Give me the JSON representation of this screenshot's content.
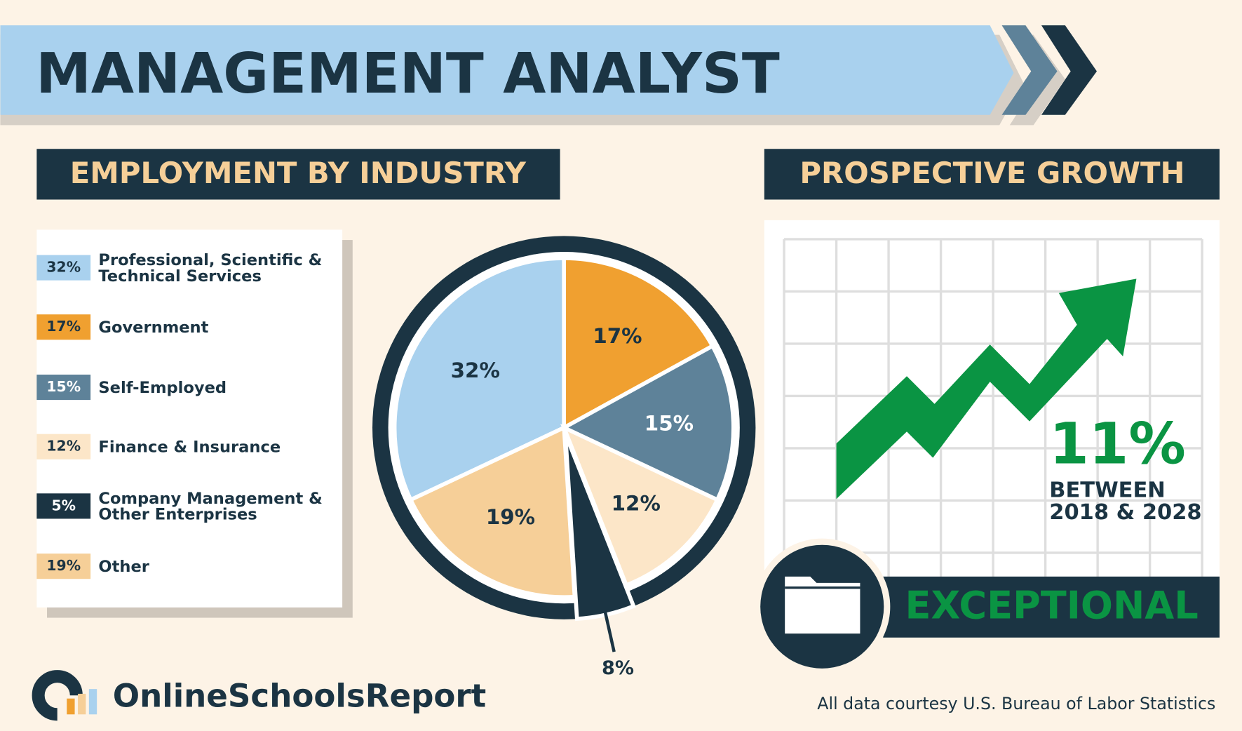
{
  "header": {
    "title": "MANAGEMENT ANALYST"
  },
  "chart_data": {
    "type": "pie",
    "title": "EMPLOYMENT BY INDUSTRY",
    "categories": [
      "Professional, Scientific & Technical Services",
      "Government",
      "Self-Employed",
      "Finance & Insurance",
      "Company Management & Other Enterprises",
      "Other"
    ],
    "values": [
      32,
      17,
      15,
      12,
      5,
      19
    ],
    "value_labels": [
      "32%",
      "17%",
      "15%",
      "12%",
      "5%",
      "19%"
    ],
    "colors": [
      "#a9d1ee",
      "#f0a030",
      "#5e8299",
      "#fce6c8",
      "#1b3443",
      "#f6cf98"
    ],
    "annotation": "8%"
  },
  "growth": {
    "title": "PROSPECTIVE GROWTH",
    "value": "11%",
    "period_lines": [
      "BETWEEN",
      "2018 & 2028"
    ],
    "rating": "EXCEPTIONAL"
  },
  "footer": {
    "brand": "OnlineSchoolsReport",
    "source": "All data courtesy U.S. Bureau of Labor Statistics"
  }
}
